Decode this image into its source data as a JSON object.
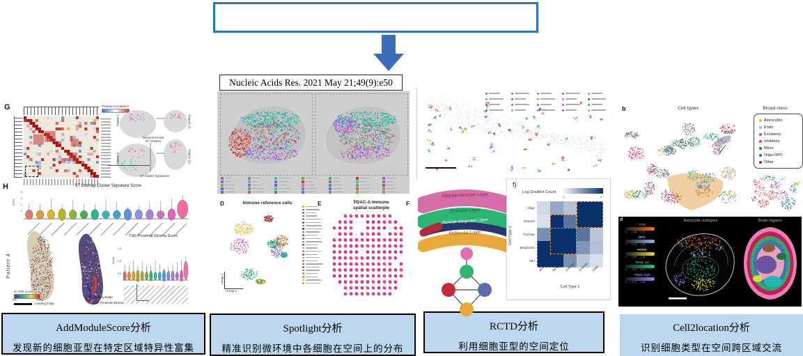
{
  "top_box": {
    "text": ""
  },
  "citation": {
    "text": "Nucleic Acids Res. 2021 May 21;49(9):e50"
  },
  "methods": [
    {
      "title": "AddModuleScore分析",
      "desc": "发现新的细胞亚型在特定区域特异性富集"
    },
    {
      "title": "Spotlight分析",
      "desc": "精准识别微环境中各细胞在空间上的分布"
    },
    {
      "title": "RCTD分析",
      "desc": "利用细胞亚型的空间定位"
    },
    {
      "title": "Cell2location分析",
      "desc": "识别细胞类型在空间跨区域交流"
    }
  ],
  "addmodule": {
    "panel_g": {
      "label": "G",
      "colorbar_label": "Pearson correlation",
      "samples": [
        "Patient 2",
        "Patient 9",
        "Patient 15",
        "Patient 10"
      ],
      "note1_l1": "Intersect Similar",
      "note1_l2": "ST Clusters",
      "note2": "ST Cluster Signatures"
    },
    "panel_h": {
      "label": "H",
      "title": "ST Overlap Cluster Signature Score",
      "ylabel": "Score",
      "yticks": [
        "3",
        "2",
        "1",
        "0"
      ]
    },
    "patient4": {
      "label": "Patient 4",
      "colorbar_label": "sc-TSK score",
      "colorbar_min": "Min",
      "colorbar_max": "Max",
      "edge_label": "Leading Edge",
      "spot_legend": [
        {
          "label": "Leading Edge",
          "color": "#27348B"
        },
        {
          "label": "TSK-Proximal Stroma",
          "color": "#E8392E"
        }
      ],
      "violin_title": "TSK-Proximal Stroma Score",
      "ylabel": "Score",
      "yticks": [
        "1.0",
        "0.5",
        "0.0"
      ]
    }
  },
  "spotlight": {
    "panel_d": {
      "label": "D",
      "title": "Immune reference cells",
      "xlabel": "Umap-1",
      "ylabel": "Umap-2"
    },
    "panel_e": {
      "label": "E",
      "title": "PDAC-A Immune",
      "title2": "spatial scatterpie"
    },
    "panel_f_stub": "F"
  },
  "rctd": {
    "layers": [
      {
        "name": "Oligodendrocyte Layer",
        "band": "#D66FA8",
        "text": "#8A2554"
      },
      {
        "name": "Granular Layer",
        "band": "#2CB573",
        "text": "#0E6B3E"
      },
      {
        "name": "Purkinje-Bergmann Layer",
        "band": "#28376B",
        "text": "#FFFFFF"
      },
      {
        "name": "Molecular Layer",
        "band": "#E8A83A",
        "text": "#8A5A10"
      }
    ],
    "network_colors": {
      "top": "#E06FAE",
      "mid": "#2CB573",
      "left": "#C22A3A",
      "right": "#5B6BAB",
      "bottom": "#E8A83A"
    },
    "panel_f": {
      "label": "f)",
      "legend_label": "Log Doublet Count",
      "legend_min": "1",
      "legend_max": "4",
      "ylabel": "Cell Type 2",
      "xlabel": "Cell Type 1",
      "rows": [
        "Oligo",
        "Granule",
        "Purkinje",
        "Bergmann",
        "MLI"
      ],
      "cols": [
        "MLI",
        "Bergmann",
        "Purkinje",
        "Granule",
        "Oligo"
      ],
      "matrix": [
        [
          0.6,
          1.6,
          1.1,
          4,
          4
        ],
        [
          0.5,
          4,
          2.6,
          4,
          4
        ],
        [
          2.1,
          4,
          4,
          2.6,
          1
        ],
        [
          4,
          4,
          4,
          2,
          1.1
        ],
        [
          4,
          4,
          2.1,
          1,
          0.5
        ]
      ],
      "highlights": [
        [
          0,
          3,
          1,
          4
        ],
        [
          1,
          1,
          3,
          2
        ],
        [
          2,
          0,
          4,
          2
        ]
      ],
      "scale_low": "#F4F9FD",
      "scale_high": "#08306B",
      "highlight_color": "#E8913A"
    }
  },
  "cell2location": {
    "panel_b": {
      "label": "b",
      "title": "Cell types",
      "endo_label": "Endo",
      "legend_title": "Broad class",
      "classes": [
        {
          "name": "Astrocytes",
          "color": "#E3C51C"
        },
        {
          "name": "Endo",
          "color": "#7EC8E3"
        },
        {
          "name": "Excitatory",
          "color": "#9E5FA7"
        },
        {
          "name": "Inhibitory",
          "color": "#E04B45"
        },
        {
          "name": "Micro",
          "color": "#1F8A3B"
        },
        {
          "name": "Oligo-OPC",
          "color": "#1F6EB4"
        },
        {
          "name": "Other",
          "color": "#B0176E"
        }
      ]
    },
    "panel_d": {
      "label": "d",
      "titles": [
        "Astrocyte subtypes",
        "Brain regions"
      ],
      "colorbars": [
        {
          "name": "CTX",
          "color": "#E87D1E",
          "ticks": "0        0.36      0.71"
        },
        {
          "name": "HPC",
          "color": "#8BBCE8",
          "ticks": "0        0.14      0.28"
        },
        {
          "name": "HYPO",
          "color": "#EDE332",
          "ticks": "0        0.59      1.18"
        },
        {
          "name": "THAL lat",
          "color": "#35C28A",
          "ticks": "0        0.54      1.07"
        },
        {
          "name": "THAL hab",
          "color": "#9B7FE8",
          "ticks": "0        0.19      0.38"
        }
      ]
    }
  },
  "style_colors": {
    "top_box_border": "#2776C6",
    "arrow_blue": "#3B6DB8",
    "caption_fill": "#BDD7EE"
  },
  "palettes": {
    "h_violin": [
      "#E8786B",
      "#E09A3C",
      "#D9B91F",
      "#B2B823",
      "#7FBD32",
      "#3BB44A",
      "#2FB58F",
      "#32B6C6",
      "#3FA3DC",
      "#5E93DC",
      "#8D8FE3",
      "#AC7FDF",
      "#CB6FD1",
      "#E85FBE",
      "#F06CA2"
    ],
    "tsk_violin": [
      "#E06A5A",
      "#E08A3A",
      "#D9A81F",
      "#BBA020",
      "#9FAE2A",
      "#6FB43A",
      "#3BB46A",
      "#2FB5A0",
      "#35AECB",
      "#4F97DC",
      "#7A8FE0",
      "#9F7FDF",
      "#C06FD5",
      "#E060C0",
      "#F272A6"
    ],
    "spot_spatial": [
      "#2FB5A0",
      "#35D08A",
      "#E84F4F",
      "#4F6FE8",
      "#9F5FD0",
      "#E85FB0",
      "#8A8A8A",
      "#20A0C0",
      "#60C030",
      "#C04030"
    ],
    "d_umap": [
      "#E0A320",
      "#B05A20",
      "#C04F9F",
      "#20A070",
      "#8FA020",
      "#8060C0",
      "#30A0B0",
      "#A03030",
      "#607830"
    ],
    "pie_base": "#E0308F",
    "pie_accents": [
      "#E8C020",
      "#30A070",
      "#4070D0",
      "#E07030",
      "#70C0E0",
      "#A060D0"
    ],
    "rctd_clusters": [
      "#E0485A",
      "#D050B0",
      "#30B060",
      "#4070E0",
      "#E09020",
      "#30C0C0",
      "#9050D0",
      "#B0B020",
      "#E070A0",
      "#507030",
      "#B06030",
      "#6080B0"
    ],
    "b_umap": [
      "#D94F70",
      "#2E8B57",
      "#8A5AA0",
      "#356FB5",
      "#20A0A0",
      "#C07030",
      "#708030",
      "#B03050",
      "#5060B0",
      "#309050",
      "#C050A0",
      "#804020",
      "#3090D0",
      "#D0A030",
      "#506070",
      "#903070",
      "#40B080",
      "#A0A040"
    ],
    "tan_blob": "#F2CFA0"
  }
}
